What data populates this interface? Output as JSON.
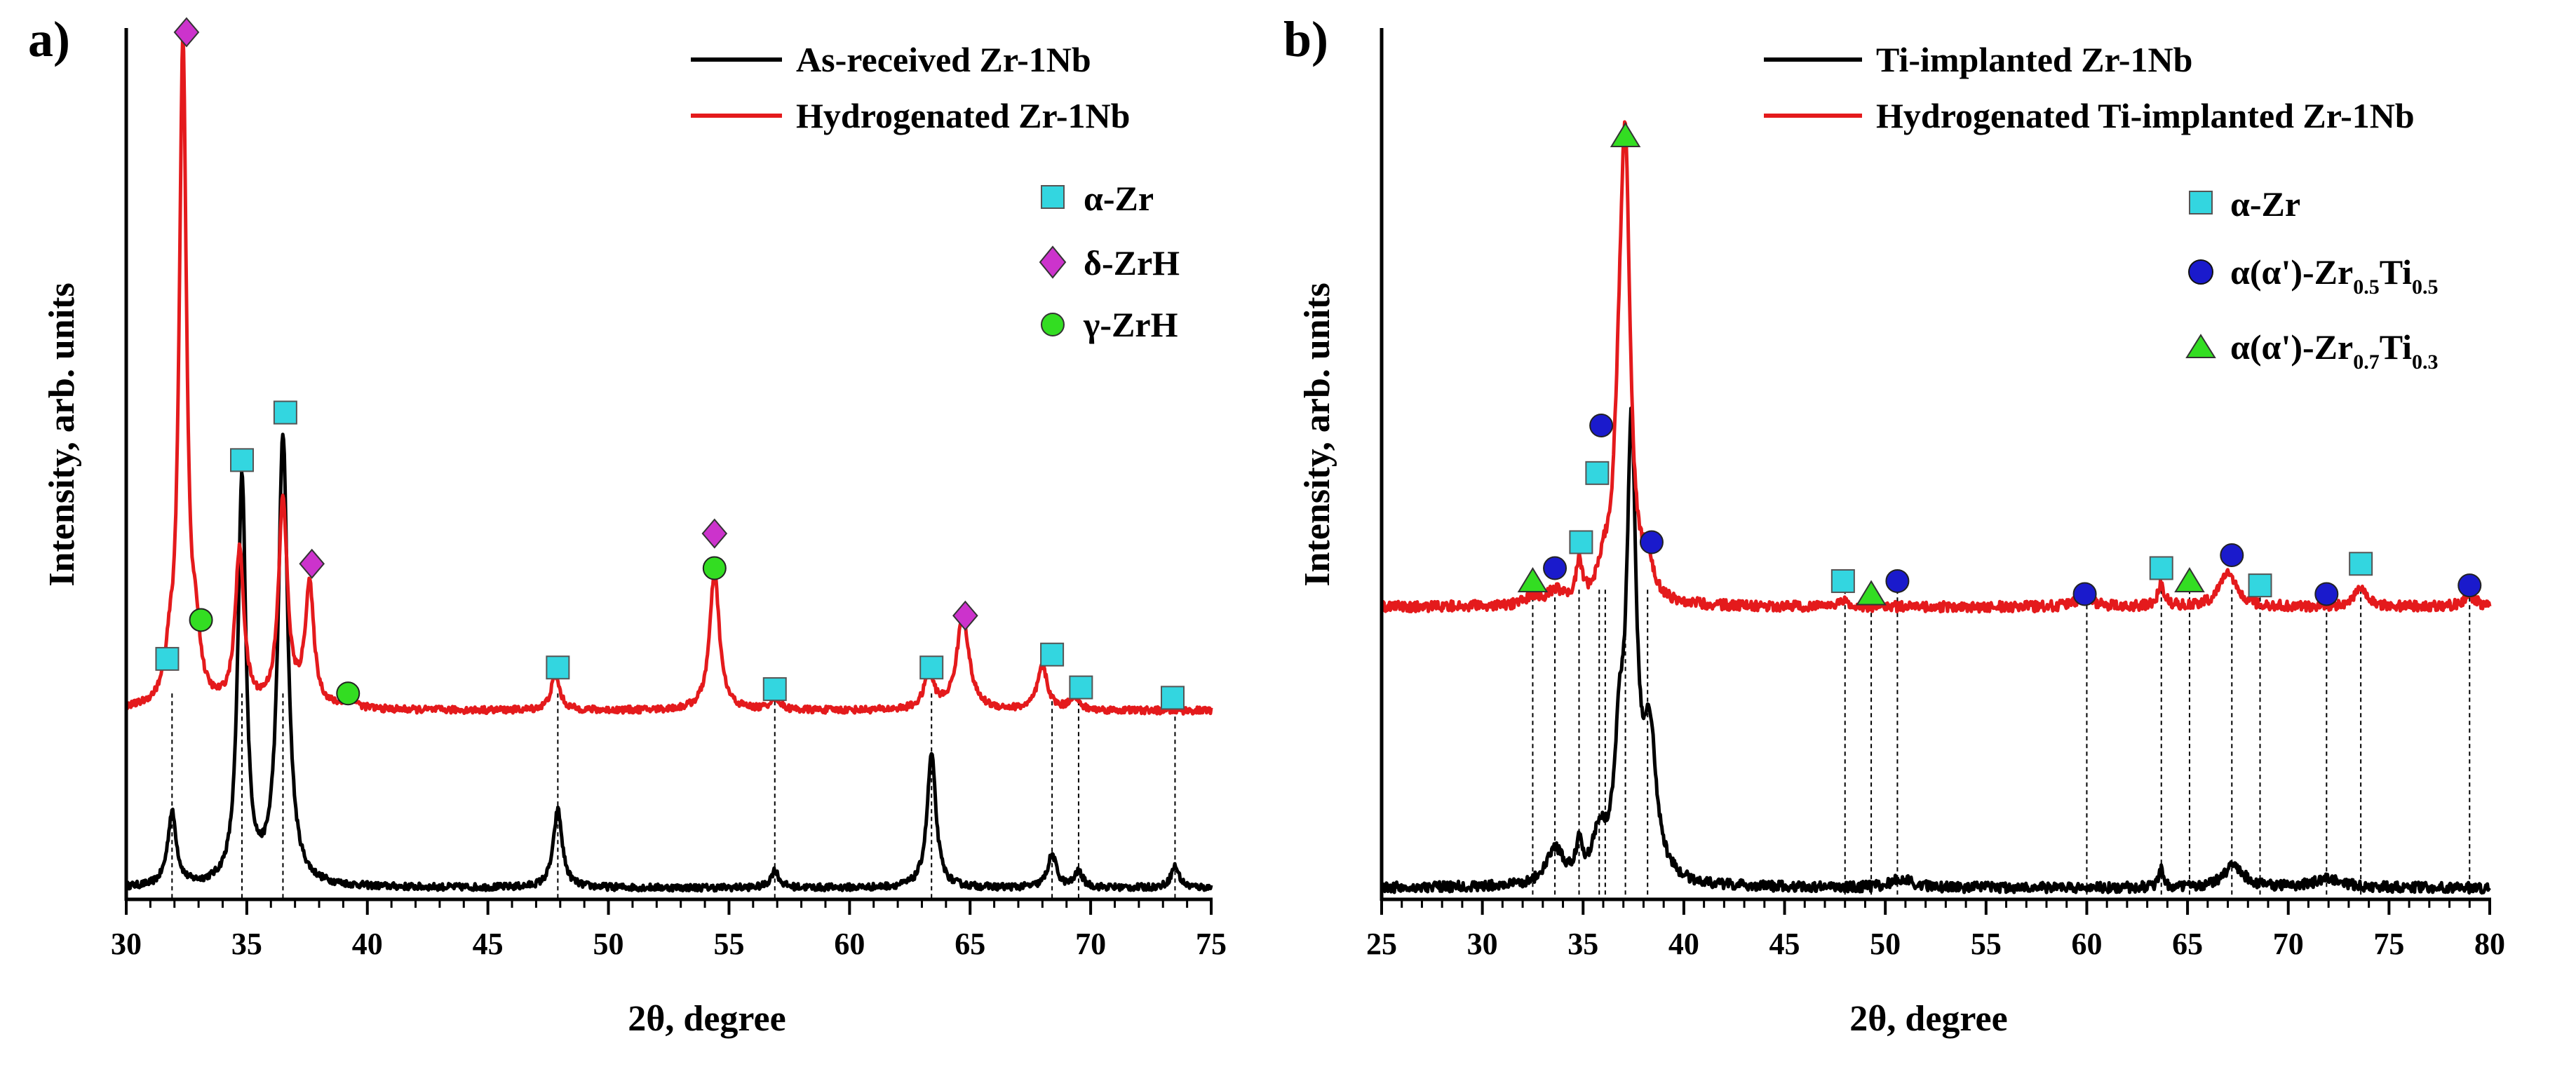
{
  "chart_data": [
    {
      "panel": "a)",
      "type": "line",
      "xlabel": "2θ, degree",
      "ylabel": "Intensity, arb. units",
      "xlim": [
        30,
        75
      ],
      "x_ticks": [
        30,
        35,
        40,
        45,
        50,
        55,
        60,
        65,
        70,
        75
      ],
      "baseline_offsets": {
        "As-received Zr-1Nb": 0,
        "Hydrogenated Zr-1Nb": 0.205
      },
      "series": [
        {
          "name": "As-received Zr-1Nb",
          "color": "#000000",
          "baseline": 0.01,
          "noise": 0.004,
          "peaks": [
            [
              31.9,
              0.085,
              0.22
            ],
            [
              34.8,
              0.47,
              0.2
            ],
            [
              36.5,
              0.52,
              0.24
            ],
            [
              47.9,
              0.09,
              0.22
            ],
            [
              56.9,
              0.02,
              0.2
            ],
            [
              63.4,
              0.155,
              0.22
            ],
            [
              68.4,
              0.038,
              0.22
            ],
            [
              69.5,
              0.018,
              0.2
            ],
            [
              73.5,
              0.025,
              0.2
            ]
          ]
        },
        {
          "name": "Hydrogenated Zr-1Nb",
          "color": "#e41a1c",
          "baseline": 0.215,
          "noise": 0.004,
          "peaks": [
            [
              31.8,
              0.04,
              0.2
            ],
            [
              32.35,
              0.77,
              0.18
            ],
            [
              32.9,
              0.06,
              0.2
            ],
            [
              34.7,
              0.18,
              0.22
            ],
            [
              36.5,
              0.24,
              0.22
            ],
            [
              37.6,
              0.14,
              0.22
            ],
            [
              39.3,
              0.01,
              0.3
            ],
            [
              47.8,
              0.04,
              0.22
            ],
            [
              54.4,
              0.16,
              0.24
            ],
            [
              56.9,
              0.015,
              0.22
            ],
            [
              63.3,
              0.04,
              0.25
            ],
            [
              64.7,
              0.11,
              0.3
            ],
            [
              68.0,
              0.05,
              0.25
            ],
            [
              69.3,
              0.015,
              0.22
            ]
          ]
        }
      ],
      "phases": [
        {
          "name": "α-Zr",
          "symbol": "square",
          "color": "#33d6e0",
          "positions": [
            [
              31.7,
              0.275
            ],
            [
              34.8,
              0.505
            ],
            [
              36.6,
              0.56
            ],
            [
              47.9,
              0.265
            ],
            [
              56.9,
              0.24
            ],
            [
              63.4,
              0.265
            ],
            [
              68.4,
              0.28
            ],
            [
              69.6,
              0.242
            ],
            [
              73.4,
              0.23
            ]
          ]
        },
        {
          "name": "δ-ZrH",
          "symbol": "diamond",
          "color": "#cc33cc",
          "positions": [
            [
              32.5,
              1.0
            ],
            [
              37.7,
              0.385
            ],
            [
              54.4,
              0.42
            ],
            [
              64.8,
              0.325
            ]
          ]
        },
        {
          "name": "γ-ZrH",
          "symbol": "circle",
          "color": "#33dd22",
          "positions": [
            [
              33.1,
              0.32
            ],
            [
              39.2,
              0.235
            ],
            [
              54.4,
              0.38
            ]
          ]
        }
      ],
      "dashed_lines": [
        31.9,
        34.8,
        36.5,
        47.9,
        56.9,
        63.4,
        68.4,
        69.5,
        73.5
      ],
      "legend_title_lines": [
        "As-received Zr-1Nb",
        "Hydrogenated Zr-1Nb"
      ],
      "legend_phases": [
        "α-Zr",
        "δ-ZrH",
        "γ-ZrH"
      ]
    },
    {
      "panel": "b)",
      "type": "line",
      "xlabel": "2θ, degree",
      "ylabel": "Intensity, arb. units",
      "xlim": [
        25,
        80
      ],
      "x_ticks": [
        25,
        30,
        35,
        40,
        45,
        50,
        55,
        60,
        65,
        70,
        75,
        80
      ],
      "series": [
        {
          "name": "Ti-implanted Zr-1Nb",
          "color": "#000000",
          "baseline": 0.01,
          "noise": 0.006,
          "peaks": [
            [
              33.6,
              0.04,
              0.5
            ],
            [
              34.8,
              0.04,
              0.18
            ],
            [
              35.8,
              0.05,
              0.4
            ],
            [
              36.8,
              0.13,
              0.3
            ],
            [
              37.4,
              0.5,
              0.28
            ],
            [
              38.3,
              0.16,
              0.4
            ],
            [
              50.8,
              0.01,
              0.6
            ],
            [
              63.7,
              0.02,
              0.15
            ],
            [
              67.3,
              0.025,
              0.6
            ],
            [
              72.0,
              0.01,
              0.9
            ]
          ]
        },
        {
          "name": "Hydrogenated Ti-implanted Zr-1Nb",
          "color": "#e41a1c",
          "baseline": 0.335,
          "noise": 0.006,
          "peaks": [
            [
              32.5,
              0.01,
              0.4
            ],
            [
              33.6,
              0.015,
              0.4
            ],
            [
              34.8,
              0.045,
              0.18
            ],
            [
              36.0,
              0.03,
              0.3
            ],
            [
              36.8,
              0.15,
              0.3
            ],
            [
              37.1,
              0.48,
              0.28
            ],
            [
              38.2,
              0.04,
              0.3
            ],
            [
              48.0,
              0.01,
              0.2
            ],
            [
              59.9,
              0.015,
              0.4
            ],
            [
              63.7,
              0.025,
              0.2
            ],
            [
              67.0,
              0.04,
              0.5
            ],
            [
              73.6,
              0.025,
              0.3
            ],
            [
              79.0,
              0.012,
              0.4
            ]
          ]
        }
      ],
      "phases": [
        {
          "name": "α-Zr",
          "symbol": "square",
          "color": "#33d6e0",
          "positions": [
            [
              35.7,
              0.49
            ],
            [
              34.9,
              0.41
            ],
            [
              47.9,
              0.365
            ],
            [
              63.7,
              0.38
            ],
            [
              68.6,
              0.36
            ],
            [
              73.6,
              0.385
            ]
          ]
        },
        {
          "name": "α(α')-Zr0.5Ti0.5",
          "symbol": "circle",
          "color": "#1a1acc",
          "positions": [
            [
              35.9,
              0.545
            ],
            [
              33.6,
              0.38
            ],
            [
              38.4,
              0.41
            ],
            [
              50.6,
              0.365
            ],
            [
              59.9,
              0.35
            ],
            [
              67.2,
              0.395
            ],
            [
              71.9,
              0.35
            ],
            [
              79.0,
              0.36
            ]
          ]
        },
        {
          "name": "α(α')-Zr0.7Ti0.3",
          "symbol": "triangle",
          "color": "#33dd22",
          "positions": [
            [
              37.1,
              0.88
            ],
            [
              32.5,
              0.365
            ],
            [
              49.3,
              0.35
            ],
            [
              65.1,
              0.365
            ]
          ]
        }
      ],
      "dashed_lines": [
        32.5,
        33.6,
        34.8,
        35.8,
        36.1,
        37.1,
        38.2,
        48.0,
        49.3,
        50.6,
        60.0,
        63.7,
        65.1,
        67.2,
        68.6,
        71.9,
        73.6,
        79.0
      ],
      "legend_title_lines": [
        "Ti-implanted Zr-1Nb",
        "Hydrogenated Ti-implanted Zr-1Nb"
      ],
      "legend_phases": [
        {
          "main": "α-Zr"
        },
        {
          "main": "α(α')-Zr",
          "sub1": "0.5",
          "mid": "Ti",
          "sub2": "0.5"
        },
        {
          "main": "α(α')-Zr",
          "sub1": "0.7",
          "mid": "Ti",
          "sub2": "0.3"
        }
      ]
    }
  ]
}
